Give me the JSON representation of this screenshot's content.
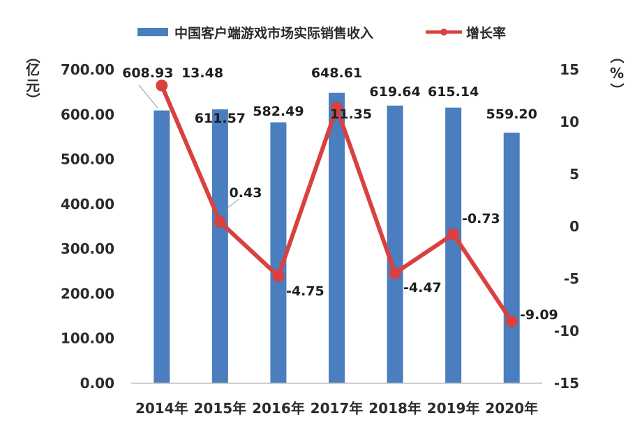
{
  "chart_data": {
    "type": "bar",
    "categories": [
      "2014年",
      "2015年",
      "2016年",
      "2017年",
      "2018年",
      "2019年",
      "2020年"
    ],
    "series": [
      {
        "name": "中国客户端游戏市场实际销售收入",
        "type": "bar",
        "axis": "left",
        "values": [
          608.93,
          611.57,
          582.49,
          648.61,
          619.64,
          615.14,
          559.2
        ],
        "labels": [
          "608.93",
          "611.57",
          "582.49",
          "648.61",
          "619.64",
          "615.14",
          "559.20"
        ],
        "color": "#4a7ebf"
      },
      {
        "name": "增长率",
        "type": "line",
        "axis": "right",
        "values": [
          13.48,
          0.43,
          -4.75,
          11.35,
          -4.47,
          -0.73,
          -9.09
        ],
        "labels": [
          "13.48",
          "0.43",
          "-4.75",
          "11.35",
          "-4.47",
          "-0.73",
          "-9.09"
        ],
        "color": "#d9413f"
      }
    ],
    "y_left": {
      "unit_chars": [
        "（",
        "亿",
        "元",
        "）"
      ],
      "ylim": [
        0,
        700
      ],
      "ticks": [
        0,
        100,
        200,
        300,
        400,
        500,
        600,
        700
      ],
      "tick_labels": [
        "0.00",
        "100.00",
        "200.00",
        "300.00",
        "400.00",
        "500.00",
        "600.00",
        "700.00"
      ]
    },
    "y_right": {
      "unit_chars": [
        "（",
        "%",
        "）"
      ],
      "ylim": [
        -15,
        15
      ],
      "ticks": [
        -15,
        -10,
        -5,
        0,
        5,
        10,
        15
      ],
      "tick_labels": [
        "-15",
        "-10",
        "-5",
        "0",
        "5",
        "10",
        "15"
      ]
    },
    "grid": false,
    "legend_position": "top"
  }
}
